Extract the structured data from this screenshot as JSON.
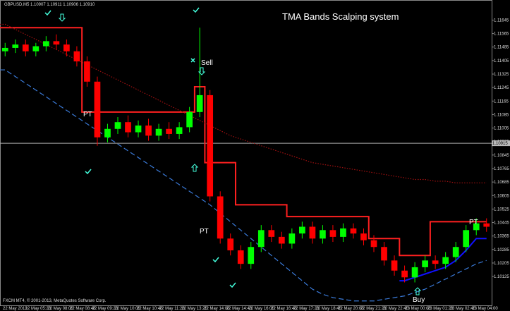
{
  "chart_data": {
    "type": "candlestick",
    "title": "TMA Bands Scalping system",
    "symbol_info": "GBPUSD,M5  1.10907 1.10911 1.10906 1.10910",
    "footer": "FXCM MT4, © 2001-2013, MetaQuotes Software Corp.",
    "annotations": {
      "sell": "Sell",
      "buy": "Buy",
      "pt1": "PT",
      "pt2": "PT",
      "pt3": "PT"
    },
    "up_color": "#00ff00",
    "down_color": "#ff0000",
    "open": [
      1.1146,
      1.1148,
      1.115,
      1.1146,
      1.1149,
      1.1152,
      1.115,
      1.1146,
      1.114,
      1.1128,
      1.1095,
      1.11,
      1.1104,
      1.1098,
      1.1102,
      1.1096,
      1.11,
      1.1097,
      1.1101,
      1.111,
      1.112,
      1.106,
      1.1035,
      1.1028,
      1.102,
      1.103,
      1.104,
      1.1036,
      1.1032,
      1.1038,
      1.1042,
      1.1035,
      1.104,
      1.1036,
      1.1041,
      1.1038,
      1.1034,
      1.103,
      1.1022,
      1.1016,
      1.1012,
      1.1018,
      1.1022,
      1.102,
      1.1024,
      1.103,
      1.104,
      1.1044
    ],
    "high": [
      1.1151,
      1.1153,
      1.1153,
      1.1151,
      1.1155,
      1.1156,
      1.1153,
      1.1149,
      1.1143,
      1.1131,
      1.1103,
      1.1107,
      1.1108,
      1.1105,
      1.1106,
      1.1103,
      1.1104,
      1.1104,
      1.1113,
      1.116,
      1.1123,
      1.1063,
      1.1038,
      1.1031,
      1.1033,
      1.1043,
      1.1043,
      1.1039,
      1.1041,
      1.1045,
      1.1045,
      1.1043,
      1.1043,
      1.1044,
      1.1044,
      1.1041,
      1.1037,
      1.1033,
      1.1025,
      1.1019,
      1.1021,
      1.1025,
      1.1025,
      1.1027,
      1.1033,
      1.1043,
      1.1047,
      1.1047
    ],
    "low": [
      1.1143,
      1.1145,
      1.1143,
      1.1143,
      1.1146,
      1.1147,
      1.1143,
      1.1137,
      1.1125,
      1.109,
      1.1092,
      1.1097,
      1.1095,
      1.1095,
      1.1093,
      1.1093,
      1.1094,
      1.1094,
      1.1098,
      1.1107,
      1.1057,
      1.1032,
      1.1025,
      1.1017,
      1.1017,
      1.1027,
      1.1033,
      1.1029,
      1.1029,
      1.1035,
      1.1032,
      1.1032,
      1.1033,
      1.1033,
      1.1035,
      1.1031,
      1.1027,
      1.1019,
      1.1013,
      1.1009,
      1.1009,
      1.1015,
      1.1017,
      1.1017,
      1.1021,
      1.1027,
      1.1037,
      1.1039
    ],
    "close": [
      1.1148,
      1.115,
      1.1146,
      1.1149,
      1.1152,
      1.115,
      1.1146,
      1.114,
      1.1128,
      1.1095,
      1.11,
      1.1104,
      1.1098,
      1.1102,
      1.1096,
      1.11,
      1.1097,
      1.1101,
      1.111,
      1.112,
      1.106,
      1.1035,
      1.1028,
      1.102,
      1.103,
      1.104,
      1.1036,
      1.1032,
      1.1038,
      1.1042,
      1.1035,
      1.104,
      1.1036,
      1.1041,
      1.1038,
      1.1034,
      1.103,
      1.1022,
      1.1016,
      1.1012,
      1.1018,
      1.1022,
      1.102,
      1.1024,
      1.103,
      1.104,
      1.1044,
      1.1042
    ],
    "series": [
      {
        "color": "#ff2020",
        "style": "step",
        "values": [
          1.116,
          1.116,
          1.116,
          1.116,
          1.116,
          1.116,
          1.116,
          1.116,
          1.111,
          1.111,
          1.111,
          1.111,
          1.111,
          1.111,
          1.111,
          1.111,
          1.111,
          1.111,
          1.111,
          1.1125,
          1.108,
          1.108,
          1.108,
          1.1055,
          1.1055,
          1.1055,
          1.1055,
          1.1055,
          1.1048,
          1.1048,
          1.1048,
          1.1048,
          1.1048,
          1.1048,
          1.1048,
          1.1048,
          1.1035,
          1.1035,
          1.1035,
          1.1025,
          1.1025,
          1.1025,
          1.1045,
          1.1045,
          1.1045,
          1.1045,
          1.1045,
          1.1045
        ]
      },
      {
        "color": "#a01010",
        "style": "dotted",
        "values": [
          1.1162,
          1.1159,
          1.1156,
          1.1153,
          1.115,
          1.1147,
          1.1144,
          1.1141,
          1.1138,
          1.1135,
          1.1132,
          1.1129,
          1.1126,
          1.1123,
          1.112,
          1.1117,
          1.1114,
          1.1111,
          1.1108,
          1.1105,
          1.1102,
          1.1099,
          1.1096,
          1.1094,
          1.1092,
          1.109,
          1.1088,
          1.1086,
          1.1084,
          1.1082,
          1.108,
          1.1079,
          1.1078,
          1.1077,
          1.1076,
          1.1075,
          1.1074,
          1.1073,
          1.1072,
          1.1071,
          1.107,
          1.107,
          1.1069,
          1.1069,
          1.1068,
          1.1068,
          1.1068,
          1.1068
        ]
      },
      {
        "color": "#3a7ad8",
        "style": "dashed",
        "values": [
          1.1135,
          1.1131,
          1.1127,
          1.1123,
          1.1119,
          1.1115,
          1.1111,
          1.1107,
          1.1103,
          1.1099,
          1.1095,
          1.1091,
          1.1087,
          1.1083,
          1.1079,
          1.1075,
          1.1071,
          1.1067,
          1.1063,
          1.1059,
          1.1055,
          1.105,
          1.1045,
          1.104,
          1.1035,
          1.103,
          1.1025,
          1.102,
          1.1015,
          1.101,
          1.1005,
          1.1002,
          1.1,
          1.0999,
          1.0998,
          1.0998,
          1.0998,
          1.0999,
          1.1,
          1.1001,
          1.1003,
          1.1005,
          1.1008,
          1.1011,
          1.1014,
          1.1017,
          1.102,
          1.1022
        ]
      },
      {
        "color": "#1010ff",
        "style": "solid",
        "values": [
          null,
          null,
          null,
          null,
          null,
          null,
          null,
          null,
          null,
          null,
          null,
          null,
          null,
          null,
          null,
          null,
          null,
          null,
          null,
          null,
          null,
          null,
          null,
          null,
          null,
          null,
          null,
          null,
          null,
          null,
          null,
          null,
          null,
          null,
          null,
          null,
          null,
          null,
          null,
          1.101,
          1.1012,
          1.1014,
          1.1016,
          1.1018,
          1.1022,
          1.1028,
          1.1035,
          1.1035
        ]
      }
    ],
    "current_price": 1.10915,
    "ylim": [
      1.09954,
      1.11764
    ],
    "yticks": [
      1.10125,
      1.10205,
      1.10285,
      1.10365,
      1.10445,
      1.10525,
      1.10605,
      1.10685,
      1.10765,
      1.10845,
      1.10925,
      1.11005,
      1.11085,
      1.11165,
      1.11245,
      1.11325,
      1.11405,
      1.11485,
      1.11565,
      1.11645
    ],
    "x_axis_labels": [
      "22 May 2013",
      "22 May 05:20",
      "22 May 08:00",
      "22 May 08:40",
      "22 May 09:20",
      "22 May 10:00",
      "22 May 10:40",
      "22 May 11:20",
      "22 May 13:20",
      "22 May 14:00",
      "22 May 14:40",
      "22 May 16:00",
      "22 May 16:40",
      "22 May 17:20",
      "22 May 18:40",
      "22 May 20:00",
      "22 May 21:20",
      "22 May 22:40",
      "23 May 00:00",
      "23 May 01:20",
      "23 May 02:40",
      "23 May 04:00"
    ]
  }
}
